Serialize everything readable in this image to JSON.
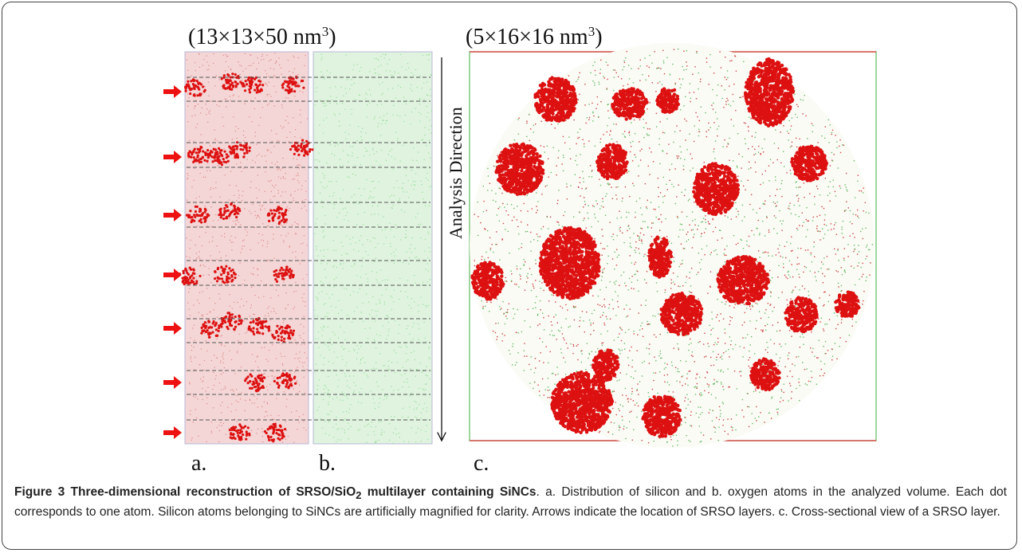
{
  "figure": {
    "panel_a_label": {
      "main": "(13×13×50 nm",
      "sup": "3",
      "end": ")"
    },
    "panel_c_label": {
      "main": "(5×16×16 nm",
      "sup": "3",
      "end": ")"
    },
    "axis_label": "Analysis Direction",
    "sublabels": [
      "a.",
      "b.",
      "c."
    ]
  },
  "caption": {
    "title": {
      "main": "Figure 3 Three-dimensional reconstruction of SRSO/SiO",
      "sub": "2",
      "end": " multilayer containing SiNCs"
    },
    "body": ". a. Distribution of silicon and b. oxygen atoms in the analyzed volume. Each dot corresponds to one atom. Silicon atoms belonging to SiNCs are artificially magnified for clarity. Arrows indicate the location of SRSO layers. c. Cross-sectional view of a SRSO layer."
  }
}
